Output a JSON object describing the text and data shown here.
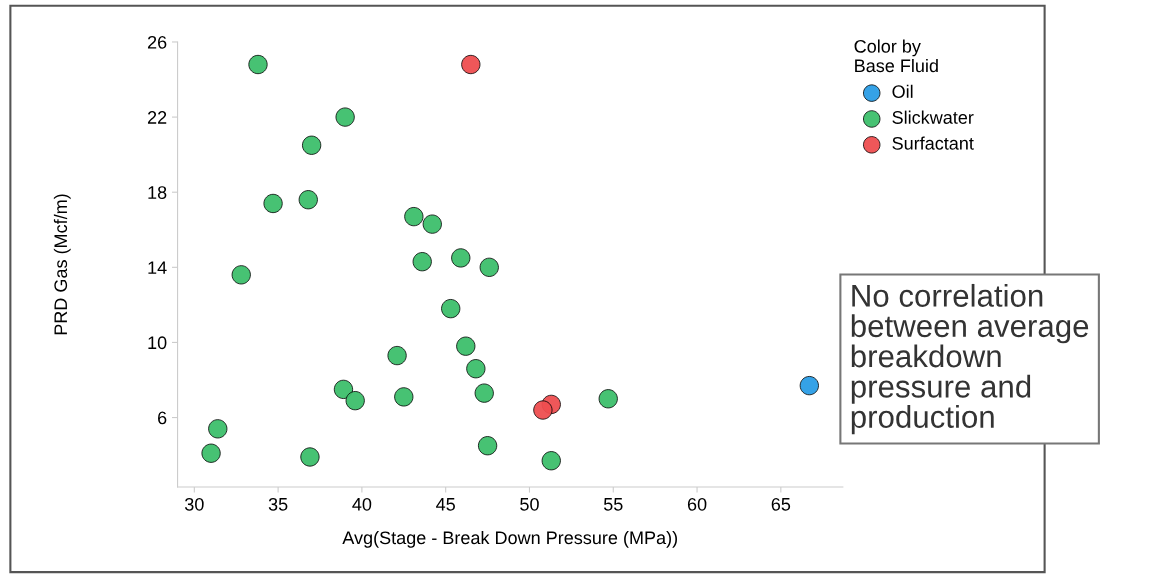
{
  "chart_data": {
    "type": "scatter",
    "xlabel": "Avg(Stage - Break Down Pressure (MPa))",
    "ylabel": "PRD Gas (Mcf/m)",
    "legend_title": "Color by\nBase Fluid",
    "legend": "top right",
    "marker": "circle",
    "grid": false,
    "xlim": [
      29,
      68.7
    ],
    "xticks": [
      30,
      35,
      40,
      45,
      50,
      55,
      60,
      65
    ],
    "ylim": [
      2.3,
      26
    ],
    "yticks": [
      6,
      10,
      14,
      18,
      22,
      26
    ],
    "annotations": [
      "No correlation\nbetween average\nbreakdown\npressure and\nproduction"
    ],
    "series": [
      {
        "name": "Oil",
        "color": "#2a9de6",
        "x": [
          66.7
        ],
        "values": [
          7.7
        ]
      },
      {
        "name": "Slickwater",
        "color": "#3dbf6b",
        "x": [
          33.8,
          39.0,
          37.0,
          34.7,
          36.8,
          43.1,
          44.2,
          32.8,
          43.6,
          45.9,
          47.6,
          45.3,
          42.1,
          46.2,
          46.8,
          38.9,
          39.6,
          42.5,
          47.3,
          54.7,
          31.4,
          31.0,
          36.9,
          47.5,
          51.3
        ],
        "values": [
          24.8,
          22.0,
          20.5,
          17.4,
          17.6,
          16.7,
          16.3,
          13.6,
          14.3,
          14.5,
          14.0,
          11.8,
          9.3,
          9.8,
          8.6,
          7.5,
          6.9,
          7.1,
          7.3,
          7.0,
          5.4,
          4.1,
          3.9,
          4.5,
          3.7
        ]
      },
      {
        "name": "Surfactant",
        "color": "#ee4e50",
        "x": [
          46.5,
          51.3,
          50.8
        ],
        "values": [
          24.8,
          6.7,
          6.4
        ]
      }
    ]
  }
}
